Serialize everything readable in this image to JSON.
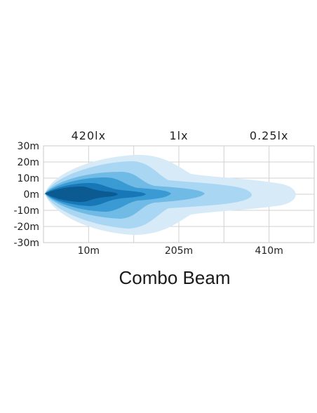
{
  "chart_data": {
    "type": "area",
    "title": "Combo Beam",
    "top_labels": [
      "420lx",
      "1lx",
      "0.25lx"
    ],
    "y_ticks": [
      "30m",
      "20m",
      "10m",
      "0m",
      "-10m",
      "-20m",
      "-30m"
    ],
    "x_ticks": [
      "10m",
      "205m",
      "410m"
    ],
    "y_range": [
      -30,
      30
    ],
    "grid": true,
    "series_colors": [
      "#d6eaf8",
      "#a9d6f3",
      "#6fbbe6",
      "#3a9ad4",
      "#1878b7",
      "#0b5a92"
    ],
    "x_tick_units": [
      1,
      3,
      5
    ],
    "plot_width_units": 6
  }
}
